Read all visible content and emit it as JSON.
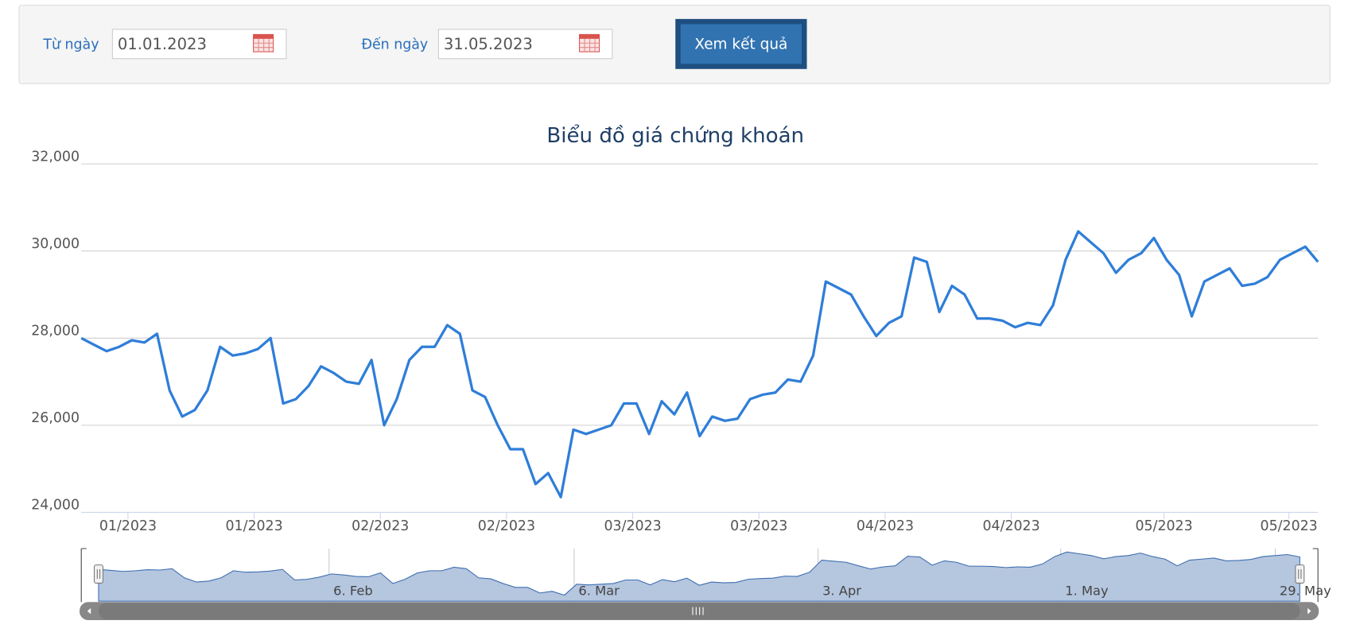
{
  "form": {
    "from_label": "Từ ngày",
    "from_value": "01.01.2023",
    "to_label": "Đến ngày",
    "to_value": "31.05.2023",
    "button": "Xem kết quả"
  },
  "chart_data": {
    "type": "line",
    "title": "Biểu đồ giá chứng khoán",
    "color": "#2f7ed8",
    "grid": true,
    "values": [
      28000,
      27850,
      27700,
      27800,
      27950,
      27900,
      28100,
      26800,
      26200,
      26350,
      26800,
      27800,
      27600,
      27650,
      27750,
      28000,
      26500,
      26600,
      26900,
      27350,
      27200,
      27000,
      26950,
      27500,
      26000,
      26600,
      27500,
      27800,
      27800,
      28300,
      28100,
      26800,
      26650,
      26000,
      25450,
      25450,
      24650,
      24900,
      24350,
      25900,
      25800,
      25900,
      26000,
      26500,
      26500,
      25800,
      26550,
      26250,
      26750,
      25750,
      26200,
      26100,
      26150,
      26600,
      26700,
      26750,
      27050,
      27000,
      27600,
      29300,
      29150,
      29000,
      28500,
      28050,
      28350,
      28500,
      29850,
      29750,
      28600,
      29200,
      29000,
      28450,
      28450,
      28400,
      28250,
      28350,
      28300,
      28750,
      29800,
      30450,
      30200,
      29950,
      29500,
      29800,
      29950,
      30300,
      29800,
      29450,
      28500,
      29300,
      29450,
      29600,
      29200,
      29250,
      29400,
      29800,
      29950,
      30100,
      29750
    ],
    "ylim": [
      24000,
      32000
    ],
    "yticks": [
      {
        "value": 24000,
        "label": "24,000"
      },
      {
        "value": 26000,
        "label": "26,000"
      },
      {
        "value": 28000,
        "label": "28,000"
      },
      {
        "value": 30000,
        "label": "30,000"
      },
      {
        "value": 32000,
        "label": "32,000"
      }
    ],
    "xticks": [
      {
        "value": 3.7,
        "label": "01/2023"
      },
      {
        "value": 13.7,
        "label": "01/2023"
      },
      {
        "value": 23.7,
        "label": "02/2023"
      },
      {
        "value": 33.7,
        "label": "02/2023"
      },
      {
        "value": 43.7,
        "label": "03/2023"
      },
      {
        "value": 53.7,
        "label": "03/2023"
      },
      {
        "value": 63.7,
        "label": "04/2023"
      },
      {
        "value": 73.7,
        "label": "04/2023"
      },
      {
        "value": 85.8,
        "label": "05/2023"
      },
      {
        "value": 95.7,
        "label": "05/2023"
      }
    ],
    "navigator_xticks": [
      {
        "value": 18.8,
        "label": "6. Feb"
      },
      {
        "value": 38.8,
        "label": "6. Mar"
      },
      {
        "value": 58.7,
        "label": "3. Apr"
      },
      {
        "value": 78.5,
        "label": "1. May"
      },
      {
        "value": 96.0,
        "label": "29. May"
      }
    ]
  }
}
